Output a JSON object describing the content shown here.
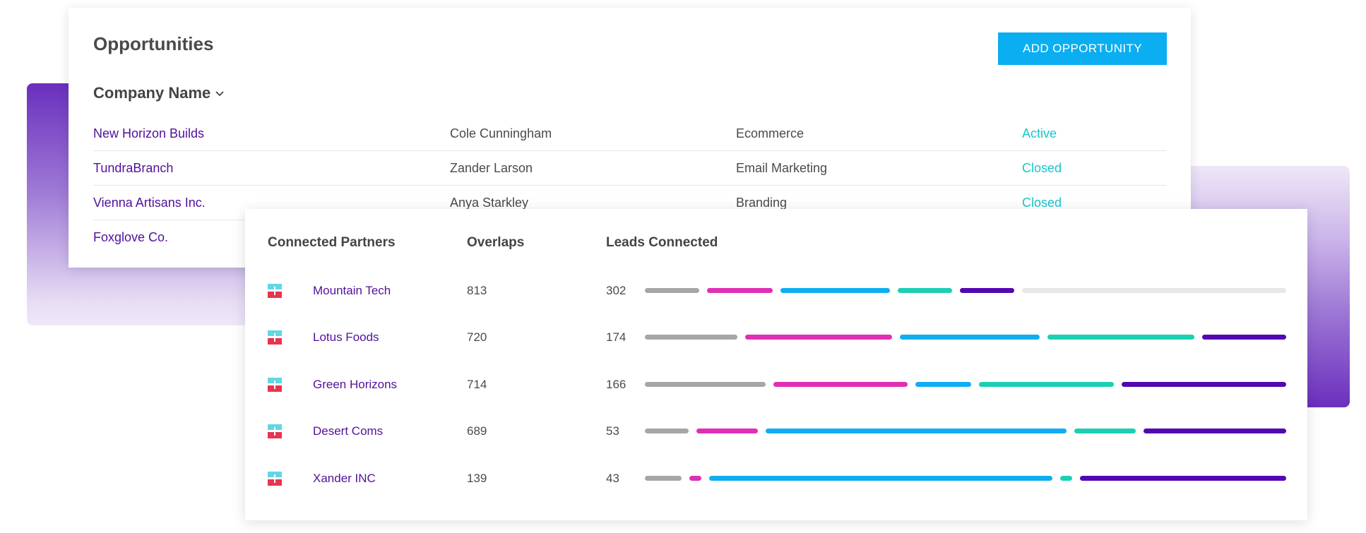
{
  "opportunities": {
    "title": "Opportunities",
    "add_button": "ADD OPPORTUNITY",
    "column_header": "Company Name",
    "rows": [
      {
        "company": "New Horizon Builds",
        "contact": "Cole Cunningham",
        "category": "Ecommerce",
        "status": "Active"
      },
      {
        "company": "TundraBranch",
        "contact": "Zander Larson",
        "category": "Email Marketing",
        "status": "Closed"
      },
      {
        "company": "Vienna Artisans Inc.",
        "contact": "Anya Starkley",
        "category": "Branding",
        "status": "Closed"
      },
      {
        "company": "Foxglove Co.",
        "contact": "",
        "category": "",
        "status": ""
      }
    ]
  },
  "partners": {
    "headers": {
      "partners": "Connected Partners",
      "overlaps": "Overlaps",
      "leads": "Leads Connected"
    },
    "rows": [
      {
        "name": "Mountain Tech",
        "overlaps": "813",
        "leads": "302",
        "segments": [
          {
            "color": "#a6a6a6",
            "value": 77
          },
          {
            "color": "#e02fb4",
            "value": 92
          },
          {
            "color": "#10aef1",
            "value": 154
          },
          {
            "color": "#1ccfb3",
            "value": 77
          },
          {
            "color": "#5207b0",
            "value": 77
          },
          {
            "color": "#e8e8e8",
            "value": 372
          }
        ]
      },
      {
        "name": "Lotus Foods",
        "overlaps": "720",
        "leads": "174",
        "segments": [
          {
            "color": "#a6a6a6",
            "value": 131
          },
          {
            "color": "#e02fb4",
            "value": 207
          },
          {
            "color": "#10aef1",
            "value": 197
          },
          {
            "color": "#1ccfb3",
            "value": 207
          },
          {
            "color": "#5207b0",
            "value": 119
          }
        ]
      },
      {
        "name": "Green Horizons",
        "overlaps": "714",
        "leads": "166",
        "segments": [
          {
            "color": "#a6a6a6",
            "value": 171
          },
          {
            "color": "#e02fb4",
            "value": 190
          },
          {
            "color": "#10aef1",
            "value": 79
          },
          {
            "color": "#1ccfb3",
            "value": 191
          },
          {
            "color": "#5207b0",
            "value": 233
          }
        ]
      },
      {
        "name": "Desert Coms",
        "overlaps": "689",
        "leads": "53",
        "segments": [
          {
            "color": "#a6a6a6",
            "value": 62
          },
          {
            "color": "#e02fb4",
            "value": 87
          },
          {
            "color": "#10aef1",
            "value": 426
          },
          {
            "color": "#1ccfb3",
            "value": 87
          },
          {
            "color": "#5207b0",
            "value": 202
          }
        ]
      },
      {
        "name": "Xander INC",
        "overlaps": "139",
        "leads": "43",
        "segments": [
          {
            "color": "#a6a6a6",
            "value": 52
          },
          {
            "color": "#e02fb4",
            "value": 17
          },
          {
            "color": "#10aef1",
            "value": 484
          },
          {
            "color": "#1ccfb3",
            "value": 17
          },
          {
            "color": "#5207b0",
            "value": 291
          }
        ]
      }
    ]
  },
  "colors": {
    "accent": "#0aaef1",
    "link": "#52109c",
    "status": "#16c6cf"
  }
}
